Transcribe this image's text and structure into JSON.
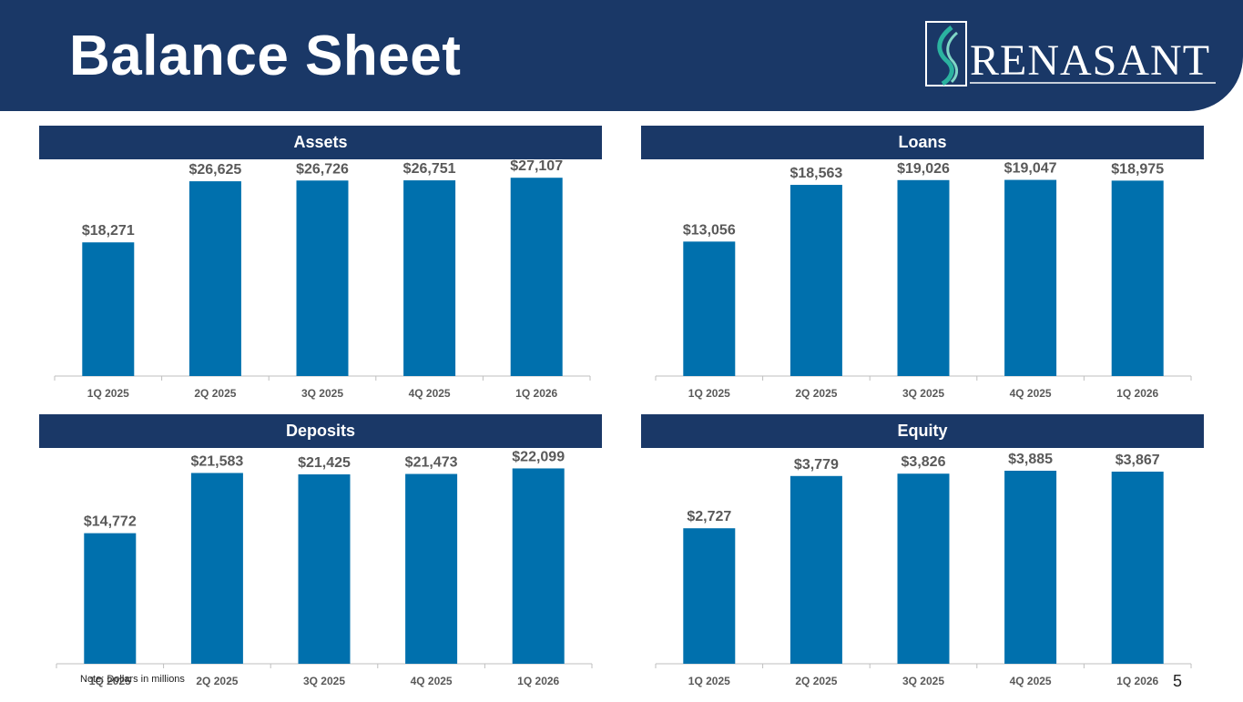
{
  "slide": {
    "title": "Balance Sheet",
    "logo_text": "RENASANT",
    "note": "Note: Dollars in millions",
    "page_number": "5",
    "colors": {
      "header": "#1a3867",
      "bar": "#0070ad",
      "label": "#595959"
    }
  },
  "chart_data": [
    {
      "type": "bar",
      "title": "Assets",
      "categories": [
        "1Q 2025",
        "2Q 2025",
        "3Q 2025",
        "4Q 2025",
        "1Q 2026"
      ],
      "values": [
        18271,
        26625,
        26726,
        26751,
        27107
      ],
      "labels": [
        "$18,271",
        "$26,625",
        "$26,726",
        "$26,751",
        "$27,107"
      ],
      "ylim": [
        0,
        29000
      ]
    },
    {
      "type": "bar",
      "title": "Loans",
      "categories": [
        "1Q 2025",
        "2Q 2025",
        "3Q 2025",
        "4Q 2025",
        "1Q 2026"
      ],
      "values": [
        13056,
        18563,
        19026,
        19047,
        18975
      ],
      "labels": [
        "$13,056",
        "$18,563",
        "$19,026",
        "$19,047",
        "$18,975"
      ],
      "ylim": [
        0,
        20600
      ]
    },
    {
      "type": "bar",
      "title": "Deposits",
      "categories": [
        "1Q 2025",
        "2Q 2025",
        "3Q 2025",
        "4Q 2025",
        "1Q 2026"
      ],
      "values": [
        14772,
        21583,
        21425,
        21473,
        22099
      ],
      "labels": [
        "$14,772",
        "$21,583",
        "$21,425",
        "$21,473",
        "$22,099"
      ],
      "ylim": [
        0,
        24000
      ]
    },
    {
      "type": "bar",
      "title": "Equity",
      "categories": [
        "1Q 2025",
        "2Q 2025",
        "3Q 2025",
        "4Q 2025",
        "1Q 2026"
      ],
      "values": [
        2727,
        3779,
        3826,
        3885,
        3867
      ],
      "labels": [
        "$2,727",
        "$3,779",
        "$3,826",
        "$3,885",
        "$3,867"
      ],
      "ylim": [
        0,
        4270
      ]
    }
  ]
}
